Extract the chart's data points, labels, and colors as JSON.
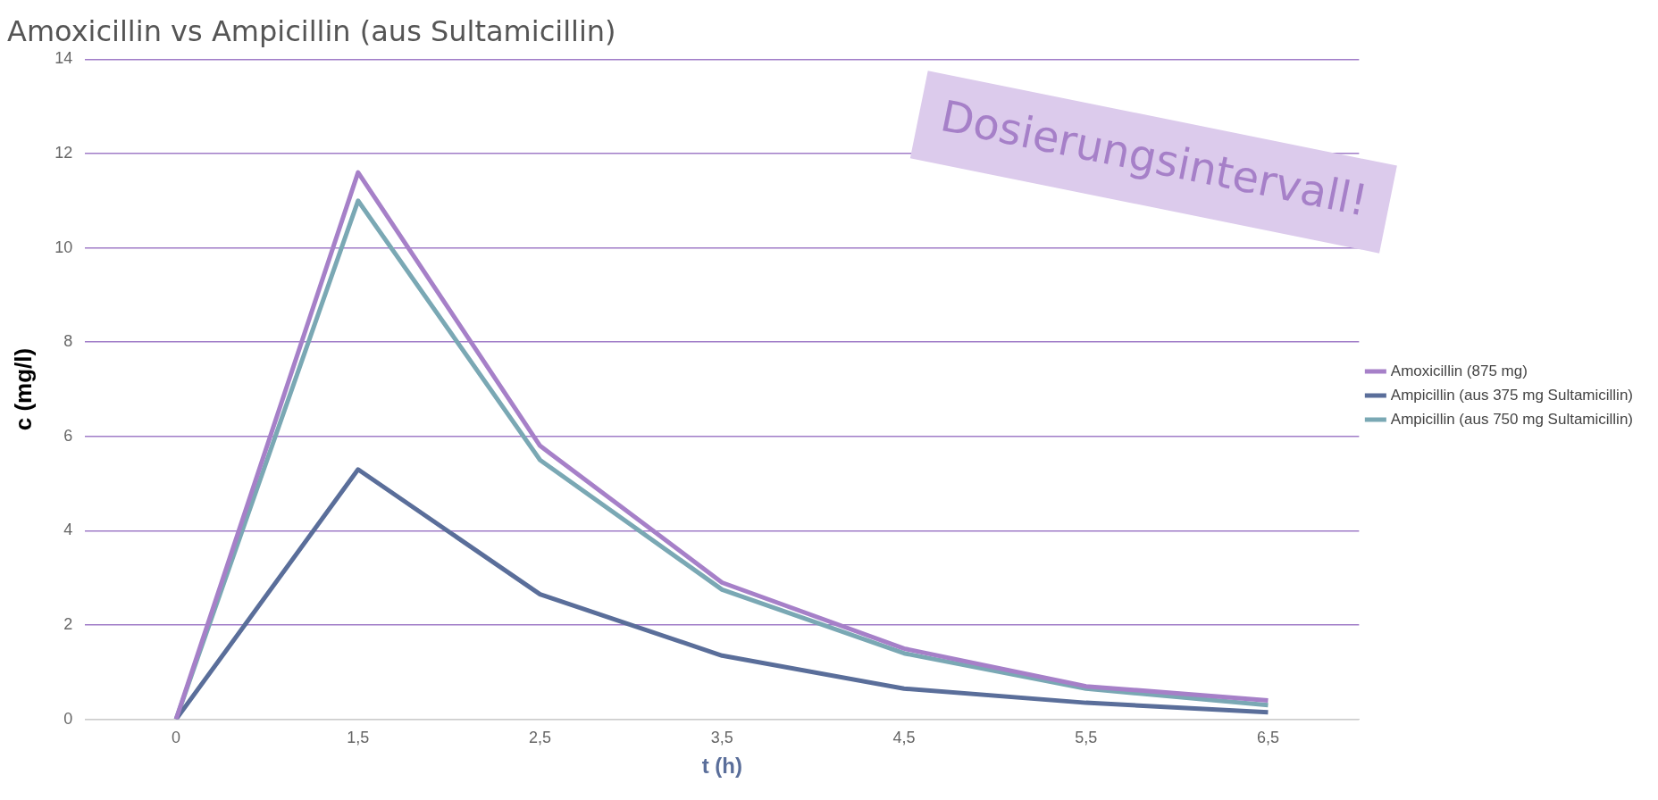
{
  "chart_data": {
    "type": "line",
    "title": "Amoxicillin vs Ampicillin (aus Sultamicillin)",
    "xlabel": "t (h)",
    "ylabel": "c (mg/l)",
    "categories": [
      "0",
      "1,5",
      "2,5",
      "3,5",
      "4,5",
      "5,5",
      "6,5"
    ],
    "series": [
      {
        "name": "Amoxicillin (875 mg)",
        "color": "#a680c8",
        "values": [
          0,
          11.6,
          5.8,
          2.9,
          1.5,
          0.7,
          0.4
        ]
      },
      {
        "name": "Ampicillin (aus 375 mg Sultamicillin)",
        "color": "#5a6e9a",
        "values": [
          0,
          5.3,
          2.65,
          1.35,
          0.65,
          0.35,
          0.15
        ]
      },
      {
        "name": "Ampicillin (aus 750 mg Sultamicillin)",
        "color": "#7aa8b4",
        "values": [
          0,
          11.0,
          5.5,
          2.75,
          1.4,
          0.65,
          0.3
        ]
      }
    ],
    "ylim": [
      0,
      14
    ],
    "yticks": [
      0,
      2,
      4,
      6,
      8,
      10,
      12,
      14
    ],
    "grid": "y",
    "legend": "right",
    "marker": "none",
    "line_style": "solid",
    "annotations": [
      "Dosierungsintervall!"
    ]
  }
}
